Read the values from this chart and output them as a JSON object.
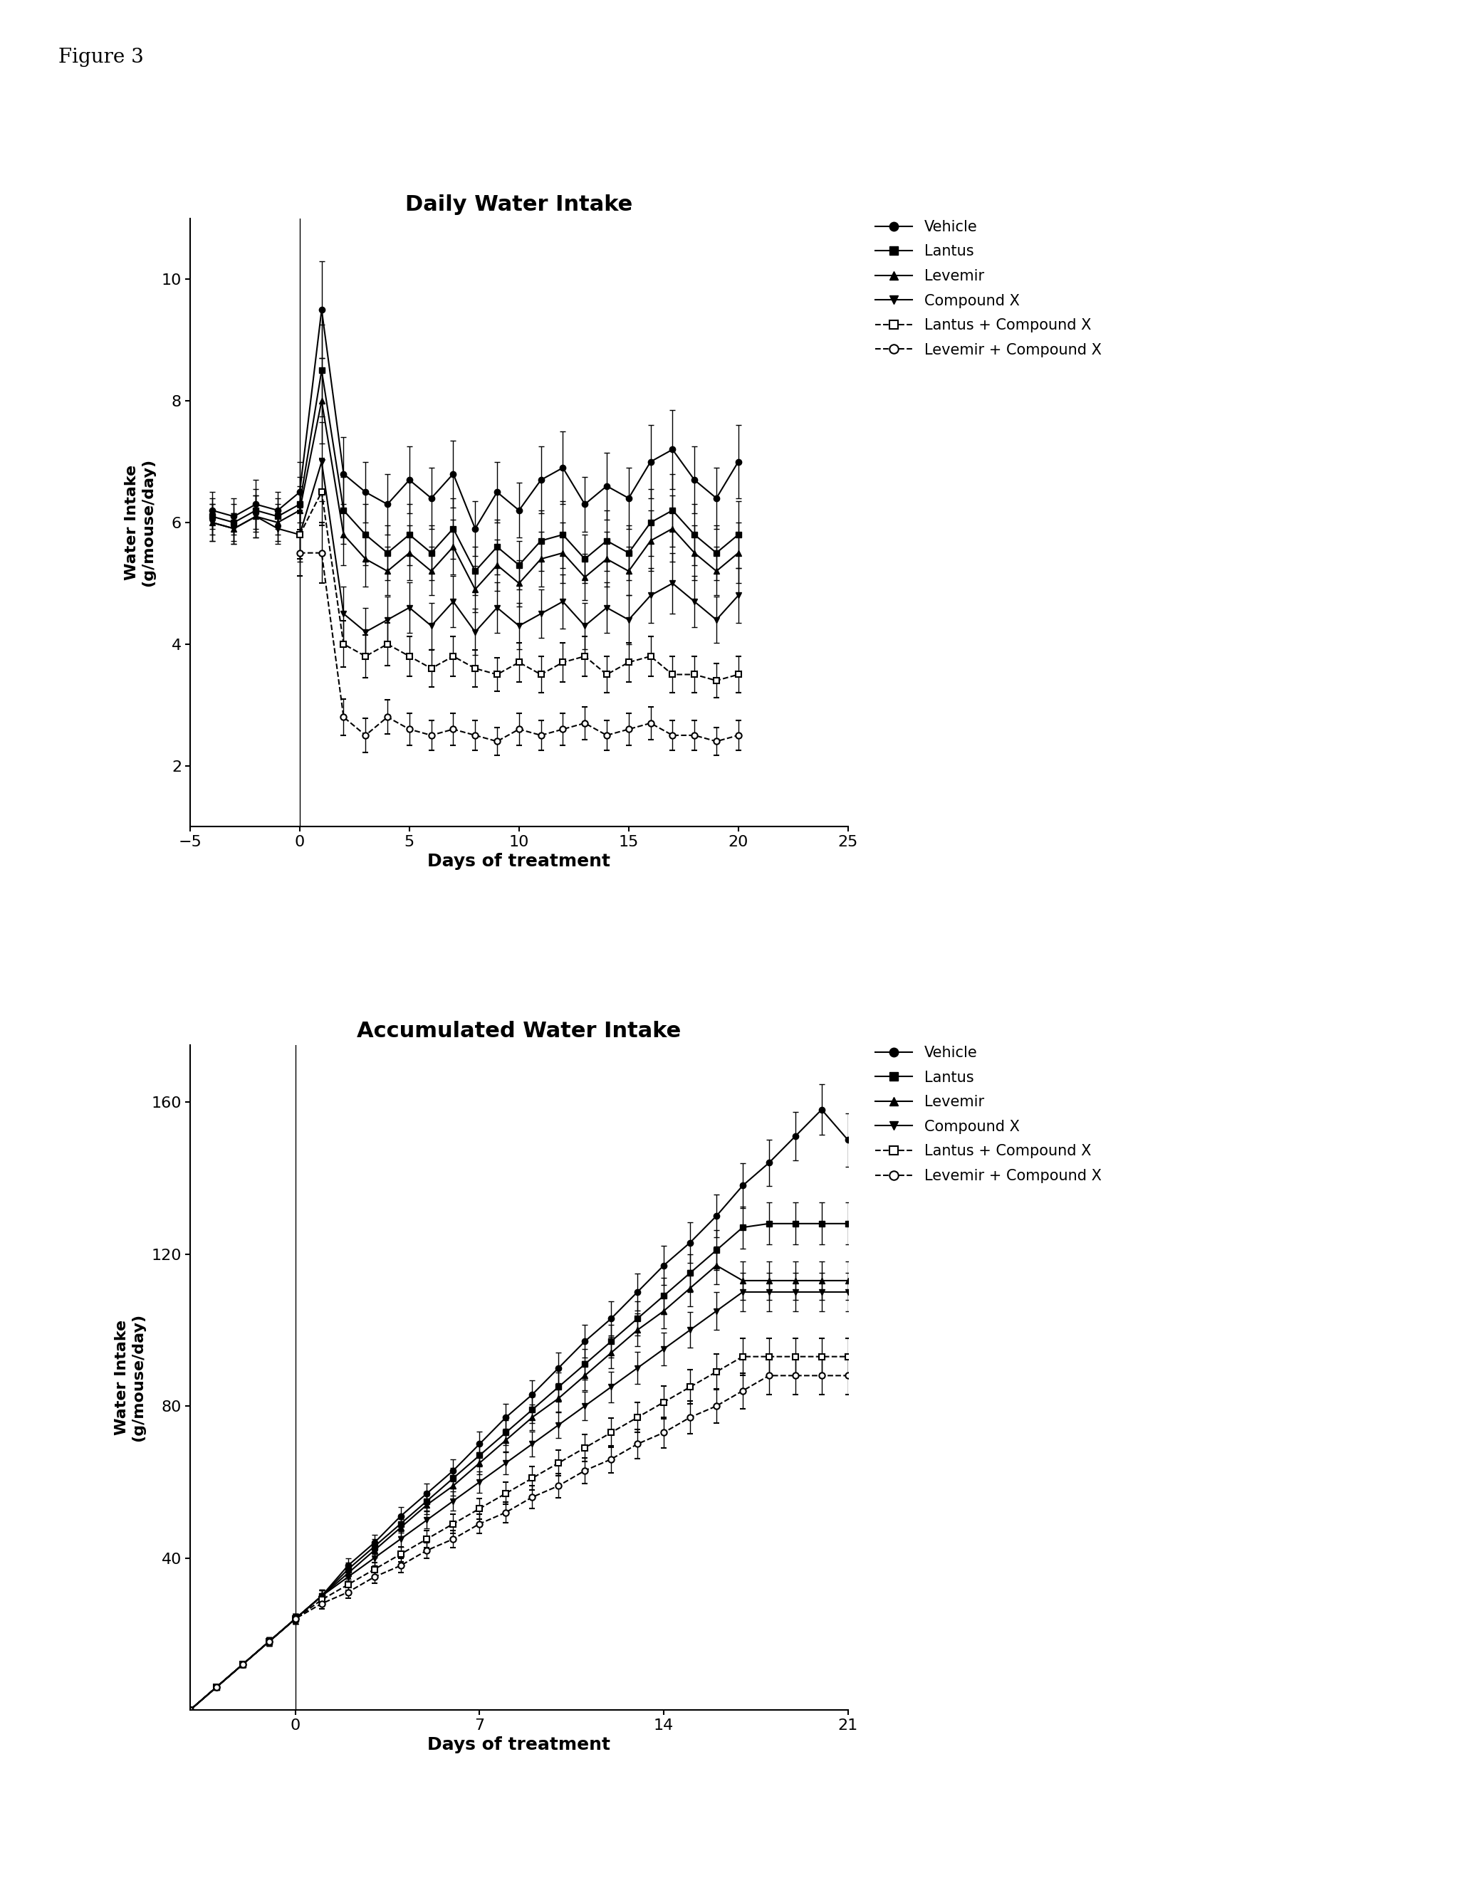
{
  "title1": "Daily Water Intake",
  "title2": "Accumulated Water Intake",
  "ylabel1": "Water Intake\n(g/mouse/day)",
  "ylabel2": "Water Intake\n(g/mouse/day)",
  "xlabel1": "Days of treatment",
  "xlabel2": "Days of treatment",
  "figure_label": "Figure 3",
  "plot1": {
    "xlim": [
      -5,
      25
    ],
    "ylim": [
      1.0,
      11.0
    ],
    "xticks": [
      -5,
      0,
      5,
      10,
      15,
      20,
      25
    ],
    "yticks": [
      2,
      4,
      6,
      8,
      10
    ],
    "series": {
      "Vehicle": {
        "x": [
          -4,
          -3,
          -2,
          -1,
          0,
          1,
          2,
          3,
          4,
          5,
          6,
          7,
          8,
          9,
          10,
          11,
          12,
          13,
          14,
          15,
          16,
          17,
          18,
          19,
          20
        ],
        "y": [
          6.2,
          6.1,
          6.3,
          6.2,
          6.5,
          9.5,
          6.8,
          6.5,
          6.3,
          6.7,
          6.4,
          6.8,
          5.9,
          6.5,
          6.2,
          6.7,
          6.9,
          6.3,
          6.6,
          6.4,
          7.0,
          7.2,
          6.7,
          6.4,
          7.0
        ],
        "yerr": [
          0.3,
          0.3,
          0.4,
          0.3,
          0.5,
          0.8,
          0.6,
          0.5,
          0.5,
          0.55,
          0.5,
          0.55,
          0.45,
          0.5,
          0.45,
          0.55,
          0.6,
          0.45,
          0.55,
          0.5,
          0.6,
          0.65,
          0.55,
          0.5,
          0.6
        ],
        "marker": "o",
        "linestyle": "-"
      },
      "Lantus": {
        "x": [
          -4,
          -3,
          -2,
          -1,
          0,
          1,
          2,
          3,
          4,
          5,
          6,
          7,
          8,
          9,
          10,
          11,
          12,
          13,
          14,
          15,
          16,
          17,
          18,
          19,
          20
        ],
        "y": [
          6.1,
          6.0,
          6.2,
          6.1,
          6.3,
          8.5,
          6.2,
          5.8,
          5.5,
          5.8,
          5.5,
          5.9,
          5.2,
          5.6,
          5.3,
          5.7,
          5.8,
          5.4,
          5.7,
          5.5,
          6.0,
          6.2,
          5.8,
          5.5,
          5.8
        ],
        "yerr": [
          0.3,
          0.3,
          0.35,
          0.3,
          0.45,
          0.75,
          0.55,
          0.5,
          0.45,
          0.5,
          0.45,
          0.5,
          0.4,
          0.45,
          0.4,
          0.5,
          0.55,
          0.4,
          0.5,
          0.45,
          0.55,
          0.6,
          0.5,
          0.45,
          0.55
        ],
        "marker": "s",
        "linestyle": "-"
      },
      "Levemir": {
        "x": [
          -4,
          -3,
          -2,
          -1,
          0,
          1,
          2,
          3,
          4,
          5,
          6,
          7,
          8,
          9,
          10,
          11,
          12,
          13,
          14,
          15,
          16,
          17,
          18,
          19,
          20
        ],
        "y": [
          6.0,
          5.9,
          6.1,
          6.0,
          6.2,
          8.0,
          5.8,
          5.4,
          5.2,
          5.5,
          5.2,
          5.6,
          4.9,
          5.3,
          5.0,
          5.4,
          5.5,
          5.1,
          5.4,
          5.2,
          5.7,
          5.9,
          5.5,
          5.2,
          5.5
        ],
        "yerr": [
          0.3,
          0.25,
          0.35,
          0.3,
          0.4,
          0.7,
          0.5,
          0.45,
          0.4,
          0.45,
          0.4,
          0.45,
          0.38,
          0.42,
          0.38,
          0.45,
          0.5,
          0.38,
          0.45,
          0.4,
          0.5,
          0.55,
          0.45,
          0.4,
          0.5
        ],
        "marker": "^",
        "linestyle": "-"
      },
      "Compound X": {
        "x": [
          -4,
          -3,
          -2,
          -1,
          0,
          1,
          2,
          3,
          4,
          5,
          6,
          7,
          8,
          9,
          10,
          11,
          12,
          13,
          14,
          15,
          16,
          17,
          18,
          19,
          20
        ],
        "y": [
          6.0,
          5.9,
          6.1,
          5.9,
          5.8,
          7.0,
          4.5,
          4.2,
          4.4,
          4.6,
          4.3,
          4.7,
          4.2,
          4.6,
          4.3,
          4.5,
          4.7,
          4.3,
          4.6,
          4.4,
          4.8,
          5.0,
          4.7,
          4.4,
          4.8
        ],
        "yerr": [
          0.3,
          0.25,
          0.35,
          0.25,
          0.45,
          0.65,
          0.45,
          0.4,
          0.38,
          0.42,
          0.38,
          0.42,
          0.38,
          0.42,
          0.38,
          0.4,
          0.45,
          0.38,
          0.42,
          0.4,
          0.45,
          0.5,
          0.42,
          0.38,
          0.45
        ],
        "marker": "v",
        "linestyle": "-"
      },
      "Lantus + Compound X": {
        "x": [
          0,
          1,
          2,
          3,
          4,
          5,
          6,
          7,
          8,
          9,
          10,
          11,
          12,
          13,
          14,
          15,
          16,
          17,
          18,
          19,
          20
        ],
        "y": [
          5.8,
          6.5,
          4.0,
          3.8,
          4.0,
          3.8,
          3.6,
          3.8,
          3.6,
          3.5,
          3.7,
          3.5,
          3.7,
          3.8,
          3.5,
          3.7,
          3.8,
          3.5,
          3.5,
          3.4,
          3.5
        ],
        "yerr": [
          0.4,
          0.55,
          0.38,
          0.35,
          0.35,
          0.33,
          0.3,
          0.33,
          0.3,
          0.28,
          0.32,
          0.3,
          0.32,
          0.33,
          0.3,
          0.32,
          0.33,
          0.3,
          0.3,
          0.28,
          0.3
        ],
        "marker": "s",
        "linestyle": "--"
      },
      "Levemir + Compound X": {
        "x": [
          0,
          1,
          2,
          3,
          4,
          5,
          6,
          7,
          8,
          9,
          10,
          11,
          12,
          13,
          14,
          15,
          16,
          17,
          18,
          19,
          20
        ],
        "y": [
          5.5,
          5.5,
          2.8,
          2.5,
          2.8,
          2.6,
          2.5,
          2.6,
          2.5,
          2.4,
          2.6,
          2.5,
          2.6,
          2.7,
          2.5,
          2.6,
          2.7,
          2.5,
          2.5,
          2.4,
          2.5
        ],
        "yerr": [
          0.38,
          0.5,
          0.3,
          0.28,
          0.28,
          0.26,
          0.25,
          0.26,
          0.25,
          0.23,
          0.26,
          0.25,
          0.26,
          0.27,
          0.25,
          0.26,
          0.27,
          0.25,
          0.25,
          0.23,
          0.25
        ],
        "marker": "o",
        "linestyle": "--"
      }
    }
  },
  "plot2": {
    "xlim": [
      -4,
      21
    ],
    "ylim": [
      0,
      175
    ],
    "xticks": [
      0,
      7,
      14,
      21
    ],
    "yticks": [
      40,
      80,
      120,
      160
    ],
    "series": {
      "Vehicle": {
        "x": [
          -4,
          -3,
          -2,
          -1,
          0,
          1,
          2,
          3,
          4,
          5,
          6,
          7,
          8,
          9,
          10,
          11,
          12,
          13,
          14,
          15,
          16,
          17,
          18,
          19,
          20,
          21
        ],
        "y": [
          0,
          6,
          12,
          18,
          24,
          30,
          38,
          44,
          51,
          57,
          63,
          70,
          77,
          83,
          90,
          97,
          103,
          110,
          117,
          123,
          130,
          138,
          144,
          151,
          158,
          150
        ],
        "yerr": [
          0,
          0.5,
          0.8,
          1.1,
          1.4,
          1.6,
          1.9,
          2.1,
          2.4,
          2.6,
          2.9,
          3.2,
          3.5,
          3.7,
          4.0,
          4.3,
          4.5,
          4.8,
          5.1,
          5.3,
          5.6,
          5.9,
          6.1,
          6.4,
          6.7,
          7.0
        ],
        "marker": "o",
        "linestyle": "-"
      },
      "Lantus": {
        "x": [
          -4,
          -3,
          -2,
          -1,
          0,
          1,
          2,
          3,
          4,
          5,
          6,
          7,
          8,
          9,
          10,
          11,
          12,
          13,
          14,
          15,
          16,
          17,
          18,
          19,
          20,
          21
        ],
        "y": [
          0,
          6,
          12,
          18,
          24,
          30,
          37,
          43,
          49,
          55,
          61,
          67,
          73,
          79,
          85,
          91,
          97,
          103,
          109,
          115,
          121,
          127,
          128,
          128,
          128,
          128
        ],
        "yerr": [
          0,
          0.5,
          0.8,
          1.1,
          1.4,
          1.6,
          1.8,
          2.0,
          2.3,
          2.5,
          2.8,
          3.0,
          3.3,
          3.5,
          3.8,
          4.0,
          4.3,
          4.5,
          4.8,
          5.0,
          5.3,
          5.5,
          5.5,
          5.5,
          5.5,
          5.5
        ],
        "marker": "s",
        "linestyle": "-"
      },
      "Levemir": {
        "x": [
          -4,
          -3,
          -2,
          -1,
          0,
          1,
          2,
          3,
          4,
          5,
          6,
          7,
          8,
          9,
          10,
          11,
          12,
          13,
          14,
          15,
          16,
          17,
          18,
          19,
          20,
          21
        ],
        "y": [
          0,
          6,
          12,
          18,
          24,
          30,
          36,
          42,
          48,
          54,
          59,
          65,
          71,
          77,
          82,
          88,
          94,
          100,
          105,
          111,
          117,
          113,
          113,
          113,
          113,
          113
        ],
        "yerr": [
          0,
          0.5,
          0.8,
          1.1,
          1.3,
          1.5,
          1.7,
          1.9,
          2.2,
          2.4,
          2.6,
          2.9,
          3.1,
          3.4,
          3.6,
          3.8,
          4.1,
          4.3,
          4.5,
          4.8,
          5.0,
          5.0,
          5.0,
          5.0,
          5.0,
          5.0
        ],
        "marker": "^",
        "linestyle": "-"
      },
      "Compound X": {
        "x": [
          -4,
          -3,
          -2,
          -1,
          0,
          1,
          2,
          3,
          4,
          5,
          6,
          7,
          8,
          9,
          10,
          11,
          12,
          13,
          14,
          15,
          16,
          17,
          18,
          19,
          20,
          21
        ],
        "y": [
          0,
          6,
          12,
          18,
          24,
          30,
          35,
          40,
          45,
          50,
          55,
          60,
          65,
          70,
          75,
          80,
          85,
          90,
          95,
          100,
          105,
          110,
          110,
          110,
          110,
          110
        ],
        "yerr": [
          0,
          0.5,
          0.8,
          1.0,
          1.3,
          1.5,
          1.7,
          1.9,
          2.1,
          2.3,
          2.6,
          2.8,
          3.0,
          3.3,
          3.5,
          3.7,
          4.0,
          4.2,
          4.4,
          4.7,
          4.9,
          5.1,
          5.1,
          5.1,
          5.1,
          5.1
        ],
        "marker": "v",
        "linestyle": "-"
      },
      "Lantus + Compound X": {
        "x": [
          -4,
          -3,
          -2,
          -1,
          0,
          1,
          2,
          3,
          4,
          5,
          6,
          7,
          8,
          9,
          10,
          11,
          12,
          13,
          14,
          15,
          16,
          17,
          18,
          19,
          20,
          21
        ],
        "y": [
          0,
          6,
          12,
          18,
          24,
          29,
          33,
          37,
          41,
          45,
          49,
          53,
          57,
          61,
          65,
          69,
          73,
          77,
          81,
          85,
          89,
          93,
          93,
          93,
          93,
          93
        ],
        "yerr": [
          0,
          0.5,
          0.8,
          1.0,
          1.2,
          1.4,
          1.6,
          1.8,
          2.0,
          2.2,
          2.5,
          2.7,
          2.9,
          3.1,
          3.4,
          3.6,
          3.8,
          4.0,
          4.3,
          4.5,
          4.7,
          4.9,
          4.9,
          4.9,
          4.9,
          4.9
        ],
        "marker": "s",
        "linestyle": "--"
      },
      "Levemir + Compound X": {
        "x": [
          -4,
          -3,
          -2,
          -1,
          0,
          1,
          2,
          3,
          4,
          5,
          6,
          7,
          8,
          9,
          10,
          11,
          12,
          13,
          14,
          15,
          16,
          17,
          18,
          19,
          20,
          21
        ],
        "y": [
          0,
          6,
          12,
          18,
          24,
          28,
          31,
          35,
          38,
          42,
          45,
          49,
          52,
          56,
          59,
          63,
          66,
          70,
          73,
          77,
          80,
          84,
          88,
          88,
          88,
          88
        ],
        "yerr": [
          0,
          0.5,
          0.7,
          1.0,
          1.2,
          1.3,
          1.5,
          1.7,
          1.9,
          2.1,
          2.3,
          2.5,
          2.8,
          3.0,
          3.2,
          3.4,
          3.6,
          3.9,
          4.1,
          4.3,
          4.5,
          4.7,
          4.9,
          4.9,
          4.9,
          4.9
        ],
        "marker": "o",
        "linestyle": "--"
      }
    }
  }
}
